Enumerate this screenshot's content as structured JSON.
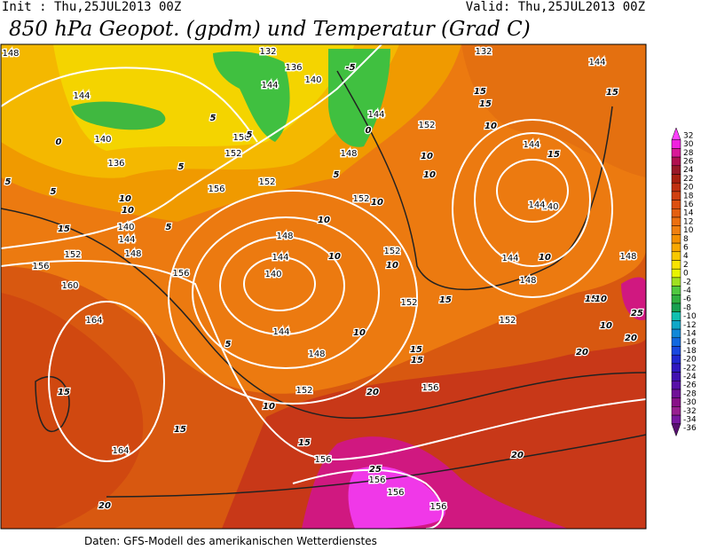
{
  "header": {
    "init": "Init : Thu,25JUL2013 00Z",
    "valid": "Valid: Thu,25JUL2013 00Z",
    "title": "850 hPa Geopot. (gpdm) und Temperatur (Grad C)"
  },
  "footer": "Daten: GFS-Modell des amerikanischen Wetterdienstes",
  "geopotential_labels": [
    148,
    132,
    136,
    140,
    144,
    144,
    144,
    140,
    136,
    152,
    156,
    152,
    156,
    148,
    152,
    152,
    132,
    144,
    144,
    140,
    144,
    144,
    148,
    148,
    152,
    152,
    152,
    140,
    144,
    148,
    152,
    156,
    160,
    164,
    164,
    156,
    148,
    144,
    140,
    144,
    148,
    152,
    156,
    156,
    156,
    156,
    156
  ],
  "temperature_labels": [
    -5,
    5,
    5,
    0,
    5,
    5,
    5,
    0,
    5,
    10,
    10,
    15,
    5,
    10,
    10,
    10,
    10,
    15,
    15,
    10,
    15,
    10,
    10,
    10,
    15,
    10,
    5,
    15,
    15,
    10,
    20,
    15,
    15,
    15,
    20,
    25,
    20,
    20,
    20,
    15,
    10,
    25,
    15,
    10
  ],
  "colorbar": {
    "labels": [
      32,
      30,
      28,
      26,
      24,
      22,
      20,
      18,
      16,
      14,
      12,
      10,
      8,
      6,
      4,
      2,
      0,
      -2,
      -4,
      -6,
      -8,
      -10,
      -12,
      -14,
      -16,
      -18,
      -20,
      -22,
      -24,
      -26,
      -28,
      -30,
      -32,
      -34,
      -36
    ],
    "colors": [
      "#ff40ff",
      "#f020e0",
      "#d81898",
      "#b01050",
      "#981828",
      "#a82010",
      "#c03010",
      "#d04010",
      "#dc5010",
      "#e46010",
      "#ec7010",
      "#f08010",
      "#f49000",
      "#f8a800",
      "#f8c800",
      "#f8e400",
      "#e8f400",
      "#a0e020",
      "#50c840",
      "#30b040",
      "#18a050",
      "#10c0b0",
      "#10a8c8",
      "#1088d8",
      "#1068e0",
      "#1848e0",
      "#2028d0",
      "#3018c0",
      "#4010b0",
      "#5810a8",
      "#701098",
      "#881088",
      "#982090",
      "#7818a0",
      "#581070"
    ]
  }
}
